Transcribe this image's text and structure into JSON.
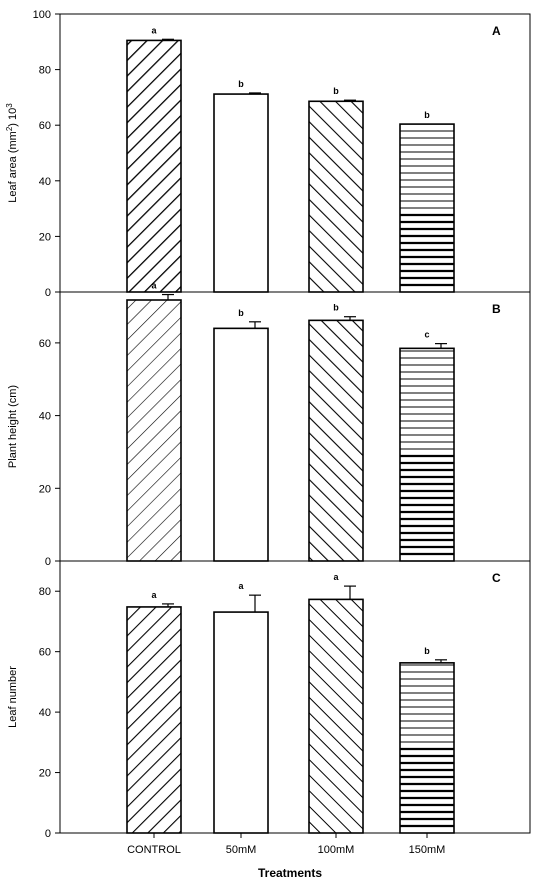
{
  "chart_data": {
    "type": "bar",
    "categories": [
      "CONTROL",
      "50mM",
      "100mM",
      "150mM"
    ],
    "x_title": "Treatments",
    "panels": [
      {
        "letter": "A",
        "ylabel_text": "Leaf  area (mm",
        "ylabel_sup1": "2",
        "ylabel_mid": ") 10",
        "ylabel_sup2": "3",
        "ylim": [
          0,
          100
        ],
        "yticks": [
          0,
          20,
          40,
          60,
          80,
          100
        ],
        "values": [
          90.5,
          71.2,
          68.6,
          60.4
        ],
        "errors": [
          0.4,
          0.4,
          0.4,
          0.0
        ],
        "sig": [
          "a",
          "b",
          "b",
          "b"
        ]
      },
      {
        "letter": "B",
        "ylabel_text": "Plant height (cm)",
        "ylim": [
          0,
          74
        ],
        "yticks": [
          0,
          20,
          40,
          60
        ],
        "values": [
          71.8,
          64.0,
          66.2,
          58.5
        ],
        "errors": [
          1.5,
          1.8,
          1.0,
          1.3
        ],
        "sig": [
          "a",
          "b",
          "b",
          "c"
        ]
      },
      {
        "letter": "C",
        "ylabel_text": "Leaf number",
        "ylim": [
          0,
          90
        ],
        "yticks": [
          0,
          20,
          40,
          60,
          80
        ],
        "values": [
          74.8,
          73.1,
          77.3,
          56.3
        ],
        "errors": [
          1.0,
          5.6,
          4.4,
          1.0
        ],
        "sig": [
          "a",
          "a",
          "a",
          "b"
        ]
      }
    ],
    "patterns": [
      "diag-up",
      "empty",
      "diag-down",
      "horizontal"
    ]
  }
}
